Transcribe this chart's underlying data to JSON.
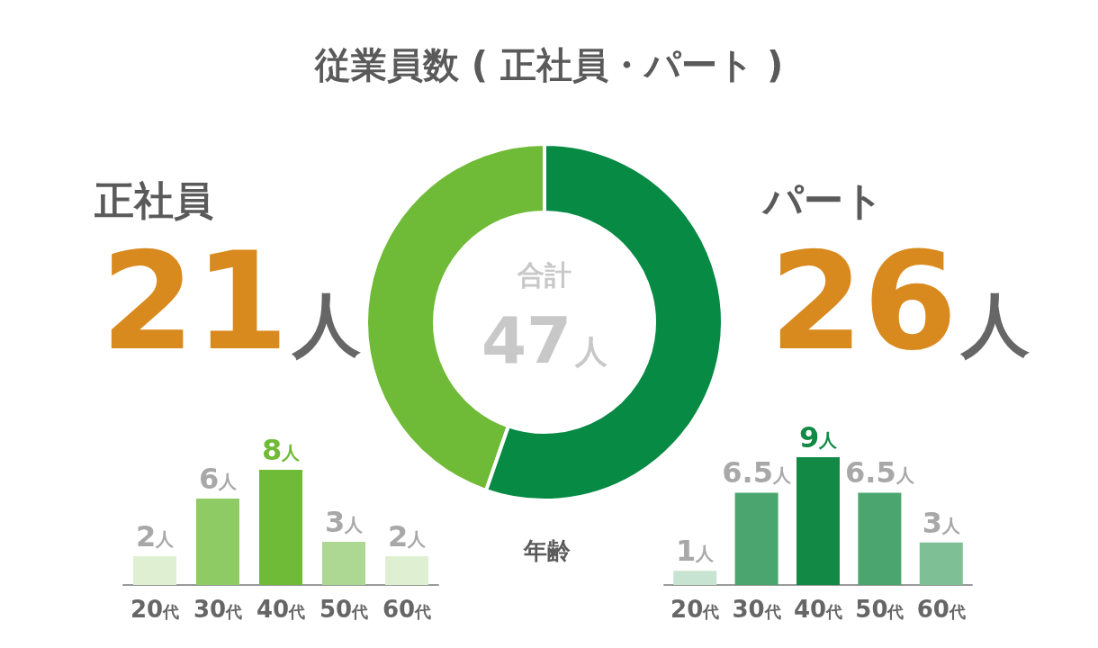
{
  "chart_data": [
    {
      "type": "donut",
      "title": "従業員数 ( 正社員・パート )",
      "categories": [
        "正社員",
        "パート"
      ],
      "values": [
        21,
        26
      ],
      "colors": [
        "#6fba36",
        "#078a44"
      ],
      "value_labels": [
        "21人",
        "26人"
      ],
      "annotations": [
        "合計",
        "47人"
      ]
    },
    {
      "type": "bar",
      "categories": [
        "20代",
        "30代",
        "40代",
        "50代",
        "60代"
      ],
      "values": [
        2,
        6,
        8,
        3,
        2
      ],
      "colors": [
        "#deefd2",
        "#8fcb65",
        "#6fba36",
        "#acd893",
        "#deefd2"
      ],
      "value_labels": [
        "2人",
        "6人",
        "8人",
        "3人",
        "2人"
      ],
      "xlabel": "年齢"
    },
    {
      "type": "bar",
      "categories": [
        "20代",
        "30代",
        "40代",
        "50代",
        "60代"
      ],
      "values": [
        1,
        6.5,
        9,
        6.5,
        3
      ],
      "colors": [
        "#c6e4d1",
        "#4aa56f",
        "#128a45",
        "#4aa56f",
        "#7ebf95"
      ],
      "value_labels": [
        "1人",
        "6.5人",
        "9人",
        "6.5人",
        "3人"
      ]
    }
  ]
}
